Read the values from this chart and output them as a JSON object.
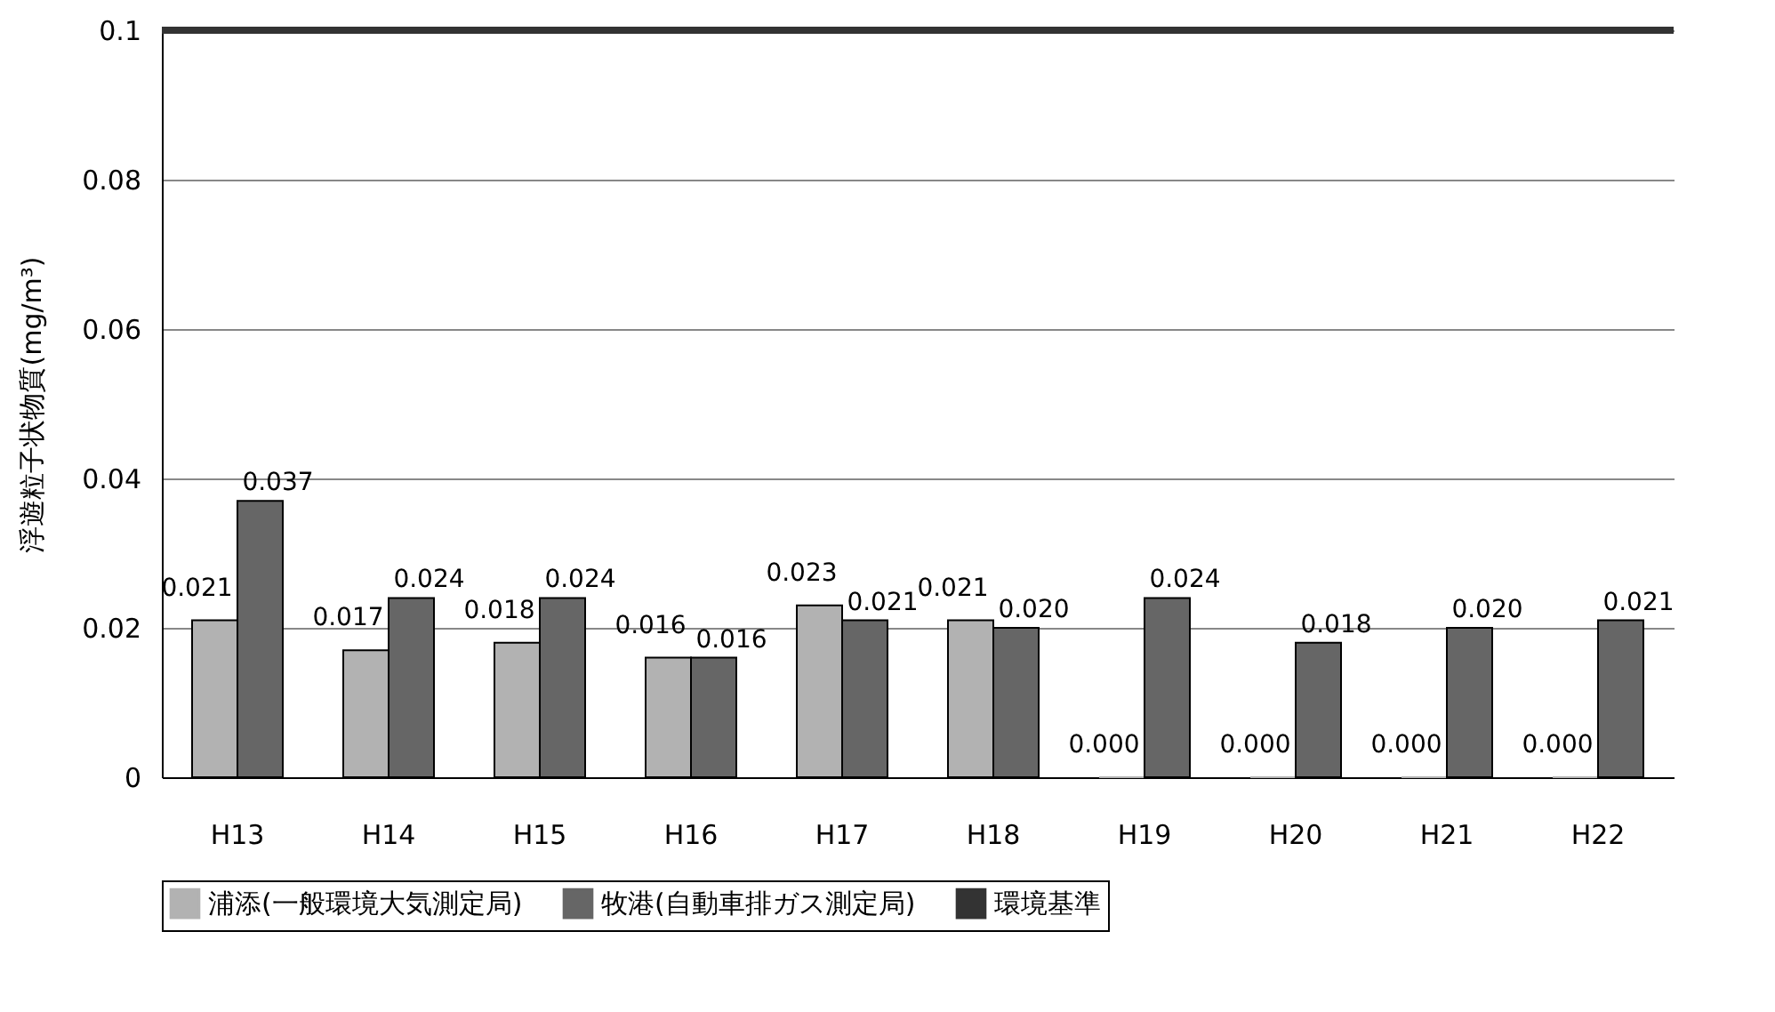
{
  "chart_data": {
    "type": "bar",
    "ylabel": "浮遊粒子状物質(mg/m³)",
    "categories": [
      "H13",
      "H14",
      "H15",
      "H16",
      "H17",
      "H18",
      "H19",
      "H20",
      "H21",
      "H22"
    ],
    "series": [
      {
        "name": "浦添(一般環境大気測定局)",
        "color": "#b2b2b2",
        "values": [
          0.021,
          0.017,
          0.018,
          0.016,
          0.023,
          0.021,
          0,
          0,
          0,
          0
        ],
        "value_labels": [
          "0.021",
          "0.017",
          "0.018",
          "0.016",
          "0.023",
          "0.021",
          "0.000",
          "0.000",
          "0.000",
          "0.000"
        ]
      },
      {
        "name": "牧港(自動車排ガス測定局)",
        "color": "#666666",
        "values": [
          0.037,
          0.024,
          0.024,
          0.016,
          0.021,
          0.02,
          0.024,
          0.018,
          0.02,
          0.021
        ],
        "value_labels": [
          "0.037",
          "0.024",
          "0.024",
          "0.016",
          "0.021",
          "0.020",
          "0.024",
          "0.018",
          "0.020",
          "0.021"
        ]
      }
    ],
    "ref_lines": [
      {
        "axis": "y",
        "value": 0.1,
        "label": "環境基準",
        "color": "#333333"
      }
    ],
    "ylim": [
      0,
      0.1
    ],
    "yticks": [
      0,
      0.02,
      0.04,
      0.06,
      0.08,
      0.1
    ],
    "grid": "y",
    "legend": "bottom"
  }
}
